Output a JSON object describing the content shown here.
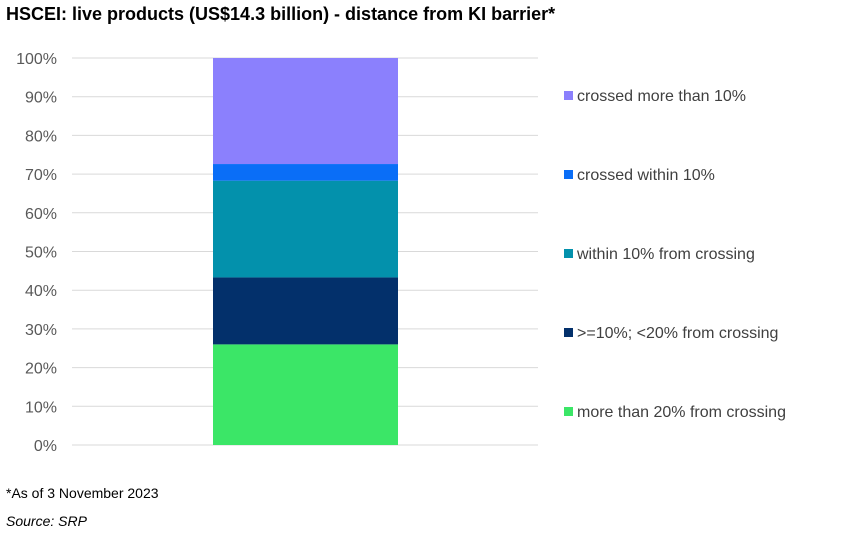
{
  "chart_data": {
    "type": "bar",
    "stacked": true,
    "percent_stacked": true,
    "title": "HSCEI: live products (US$14.3 billion) - distance from KI barrier*",
    "ylim": [
      0,
      100
    ],
    "yticks": [
      "0%",
      "10%",
      "20%",
      "30%",
      "40%",
      "50%",
      "60%",
      "70%",
      "80%",
      "90%",
      "100%"
    ],
    "grid": true,
    "legend_position": "right",
    "series": [
      {
        "name": "more than 20% from crossing",
        "value": 26,
        "color": "#3be667"
      },
      {
        "name": ">=10%; <20% from crossing",
        "value": 17.3,
        "color": "#03306b"
      },
      {
        "name": "within 10% from crossing",
        "value": 25,
        "color": "#0391ac"
      },
      {
        "name": "crossed within 10%",
        "value": 4.3,
        "color": "#0a6ef7"
      },
      {
        "name": "crossed more than 10%",
        "value": 27.4,
        "color": "#8b80fd"
      }
    ]
  },
  "footnote": "*As of 3 November 2023",
  "source": "Source: SRP"
}
